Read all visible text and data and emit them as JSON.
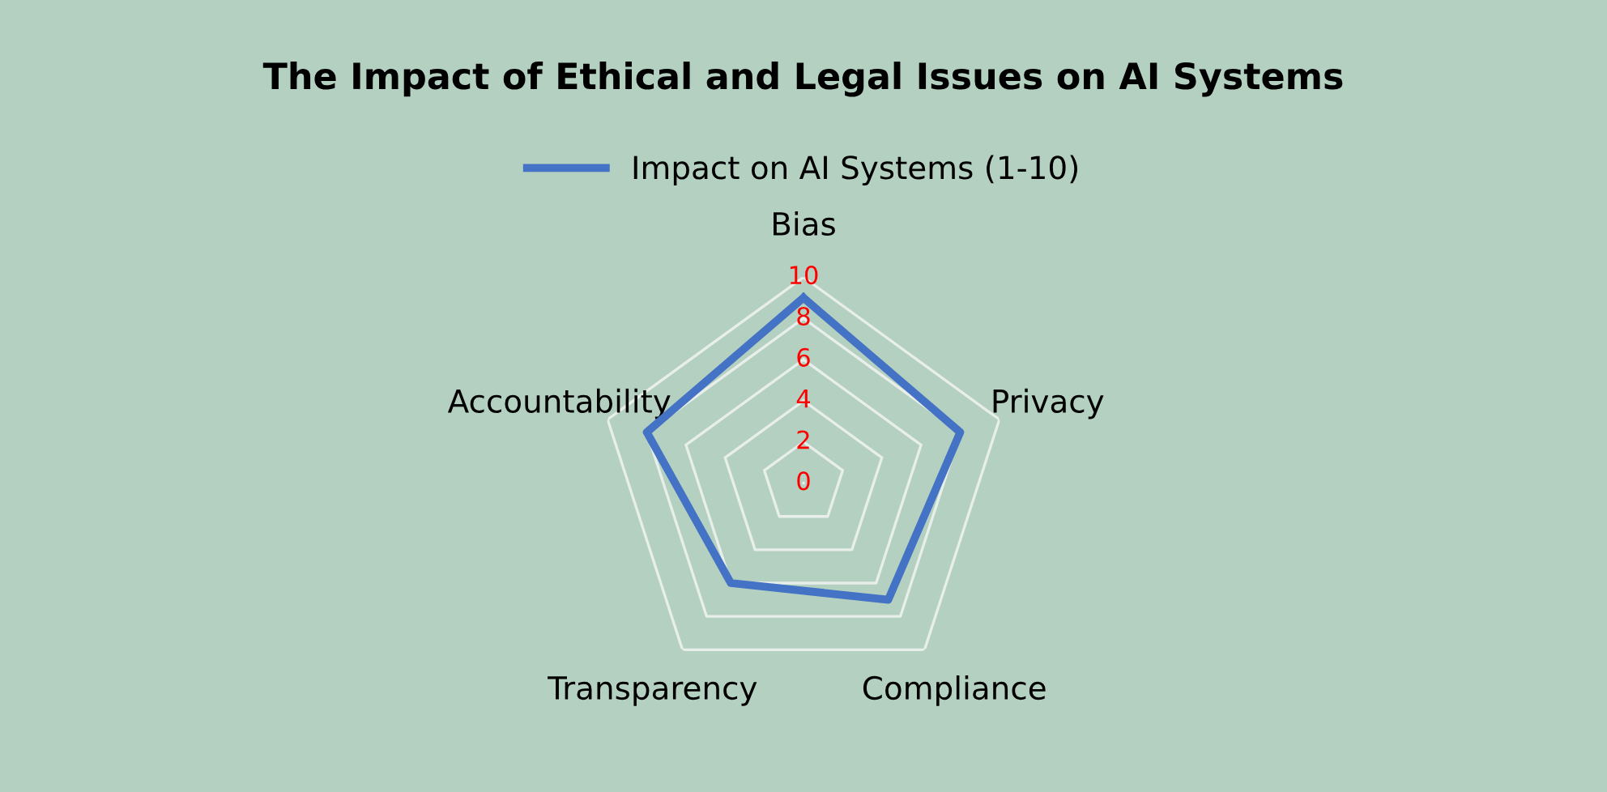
{
  "chart_data": {
    "type": "radar",
    "title": "The Impact of Ethical and Legal Issues on AI Systems",
    "categories": [
      "Bias",
      "Privacy",
      "Compliance",
      "Transparency",
      "Accountability"
    ],
    "series": [
      {
        "name": "Impact on AI Systems (1-10)",
        "color": "#4472c4",
        "values": [
          9,
          8,
          7,
          6,
          8
        ]
      }
    ],
    "ylim": [
      0,
      10
    ],
    "yticks": [
      0,
      2,
      4,
      6,
      8,
      10
    ],
    "grid": true,
    "legend": "top",
    "marker": "none"
  }
}
